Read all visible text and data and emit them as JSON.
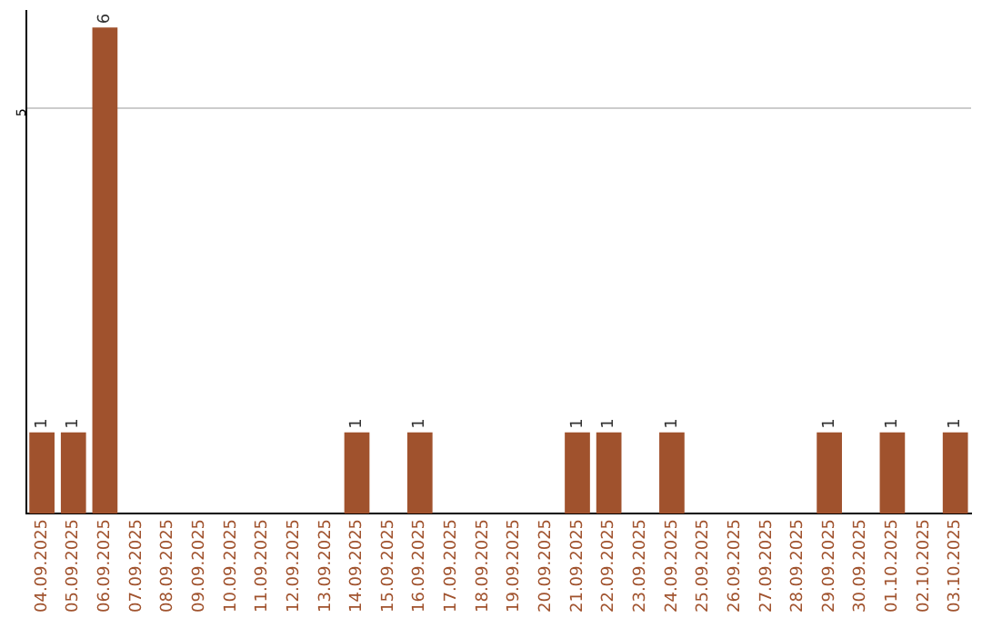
{
  "chart_data": {
    "type": "bar",
    "categories": [
      "04.09.2025",
      "05.09.2025",
      "06.09.2025",
      "07.09.2025",
      "08.09.2025",
      "09.09.2025",
      "10.09.2025",
      "11.09.2025",
      "12.09.2025",
      "13.09.2025",
      "14.09.2025",
      "15.09.2025",
      "16.09.2025",
      "17.09.2025",
      "18.09.2025",
      "19.09.2025",
      "20.09.2025",
      "21.09.2025",
      "22.09.2025",
      "23.09.2025",
      "24.09.2025",
      "25.09.2025",
      "26.09.2025",
      "27.09.2025",
      "28.09.2025",
      "29.09.2025",
      "30.09.2025",
      "01.10.2025",
      "02.10.2025",
      "03.10.2025"
    ],
    "values": [
      1,
      1,
      6,
      0,
      0,
      0,
      0,
      0,
      0,
      0,
      1,
      0,
      1,
      0,
      0,
      0,
      0,
      1,
      1,
      0,
      1,
      0,
      0,
      0,
      0,
      1,
      0,
      1,
      0,
      1
    ],
    "value_labels": [
      "1",
      "1",
      "6",
      null,
      null,
      null,
      null,
      null,
      null,
      null,
      "1",
      null,
      "1",
      null,
      null,
      null,
      null,
      "1",
      "1",
      null,
      "1",
      null,
      null,
      null,
      null,
      "1",
      null,
      "1",
      null,
      "1"
    ],
    "color": "#a0522d",
    "ylim": [
      0,
      6.2
    ],
    "yticks": [
      5
    ],
    "grid": "y"
  }
}
